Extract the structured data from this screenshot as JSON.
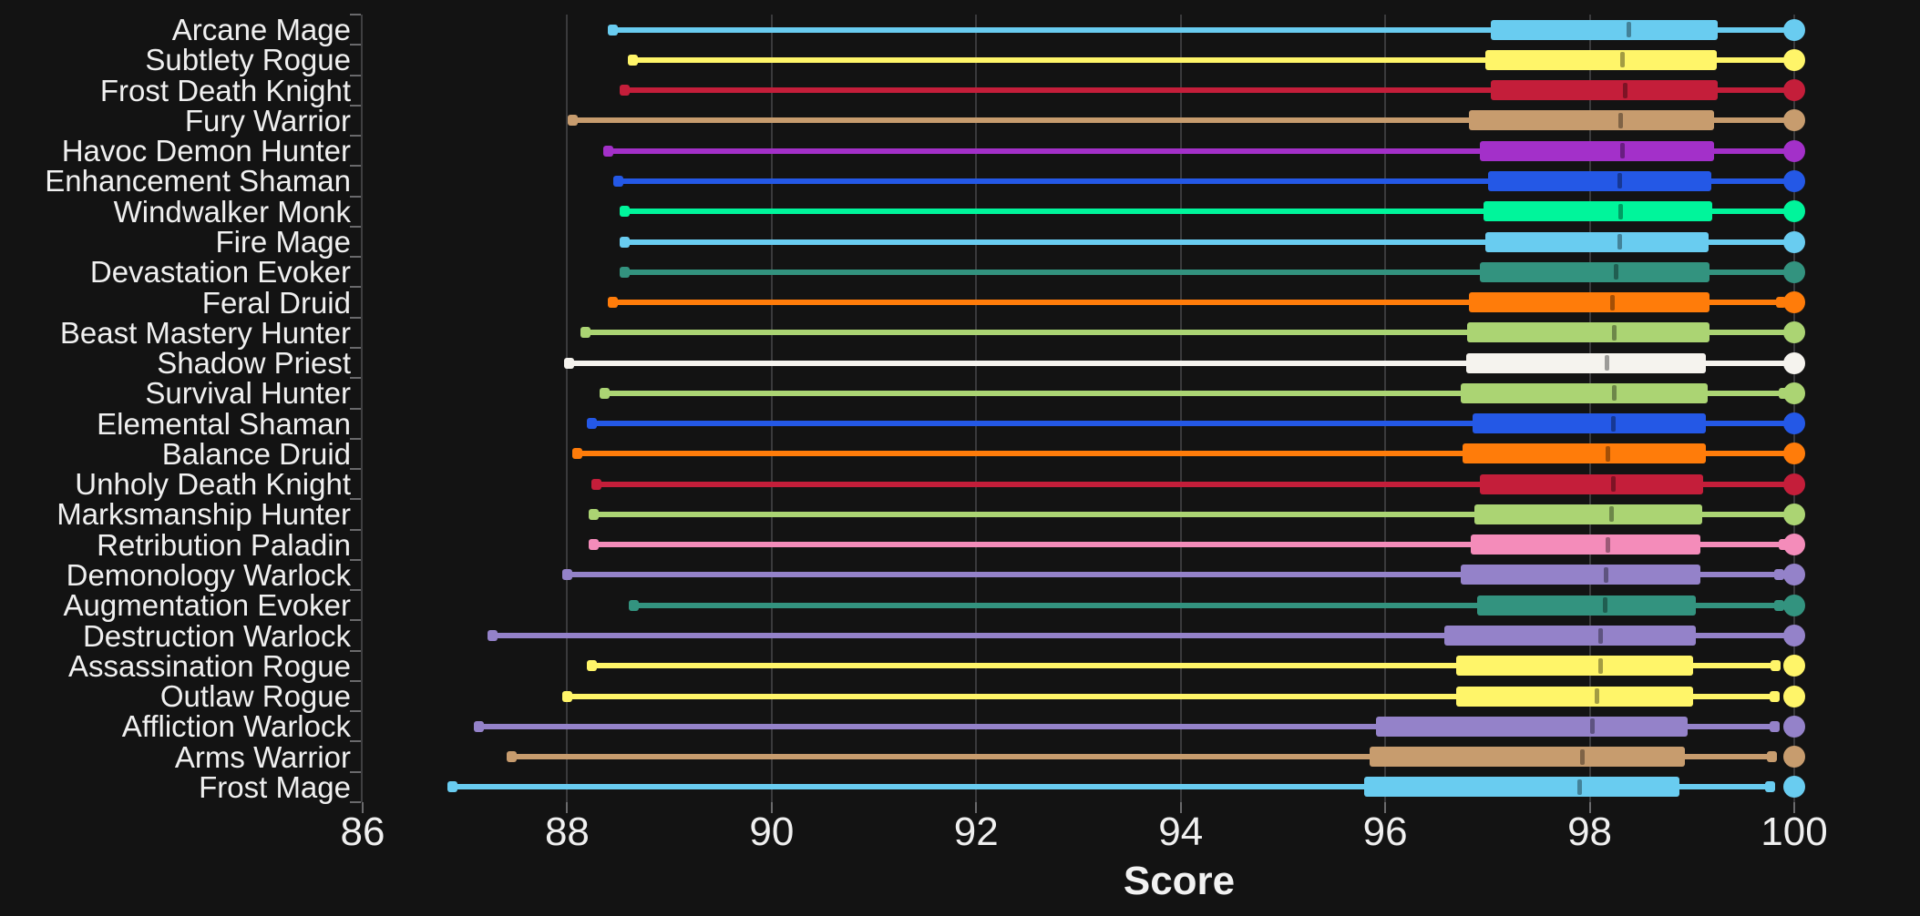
{
  "chart_data": {
    "type": "box",
    "orientation": "horizontal",
    "title": "",
    "xlabel": "Score",
    "ylabel": "",
    "xlim": [
      86,
      100.3
    ],
    "xticks": [
      86,
      88,
      90,
      92,
      94,
      96,
      98,
      100
    ],
    "grid": "vertical",
    "legend": "none",
    "marker_note": "each row: whisker_low cap, IQR box with darker median tick, whisker_high, max dot at 100",
    "rows": [
      {
        "label": "Arcane Mage",
        "color": "#69CCF0",
        "whisker_low": 88.45,
        "q1": 97.03,
        "median": 98.38,
        "q3": 99.25,
        "whisker_high": 100,
        "max": 100
      },
      {
        "label": "Subtlety Rogue",
        "color": "#FFF569",
        "whisker_low": 88.64,
        "q1": 96.98,
        "median": 98.32,
        "q3": 99.24,
        "whisker_high": 100,
        "max": 100
      },
      {
        "label": "Frost Death Knight",
        "color": "#C41E3A",
        "whisker_low": 88.56,
        "q1": 97.03,
        "median": 98.35,
        "q3": 99.25,
        "whisker_high": 100,
        "max": 100
      },
      {
        "label": "Fury Warrior",
        "color": "#C79C6E",
        "whisker_low": 88.05,
        "q1": 96.82,
        "median": 98.3,
        "q3": 99.22,
        "whisker_high": 100,
        "max": 100
      },
      {
        "label": "Havoc Demon Hunter",
        "color": "#A330C9",
        "whisker_low": 88.4,
        "q1": 96.93,
        "median": 98.32,
        "q3": 99.22,
        "whisker_high": 100,
        "max": 100
      },
      {
        "label": "Enhancement Shaman",
        "color": "#2458E6",
        "whisker_low": 88.5,
        "q1": 97.01,
        "median": 98.29,
        "q3": 99.19,
        "whisker_high": 100,
        "max": 100
      },
      {
        "label": "Windwalker Monk",
        "color": "#00F59B",
        "whisker_low": 88.56,
        "q1": 96.96,
        "median": 98.3,
        "q3": 99.2,
        "whisker_high": 100,
        "max": 100
      },
      {
        "label": "Fire Mage",
        "color": "#69CCF0",
        "whisker_low": 88.56,
        "q1": 96.98,
        "median": 98.29,
        "q3": 99.16,
        "whisker_high": 100,
        "max": 100
      },
      {
        "label": "Devastation Evoker",
        "color": "#33937F",
        "whisker_low": 88.56,
        "q1": 96.93,
        "median": 98.26,
        "q3": 99.17,
        "whisker_high": 100,
        "max": 100
      },
      {
        "label": "Feral Druid",
        "color": "#FF7C0A",
        "whisker_low": 88.45,
        "q1": 96.82,
        "median": 98.22,
        "q3": 99.17,
        "whisker_high": 99.87,
        "max": 100
      },
      {
        "label": "Beast Mastery Hunter",
        "color": "#ABD473",
        "whisker_low": 88.18,
        "q1": 96.8,
        "median": 98.24,
        "q3": 99.17,
        "whisker_high": 100,
        "max": 100
      },
      {
        "label": "Shadow Priest",
        "color": "#F5F3EE",
        "whisker_low": 88.02,
        "q1": 96.79,
        "median": 98.17,
        "q3": 99.14,
        "whisker_high": 100,
        "max": 100
      },
      {
        "label": "Survival Hunter",
        "color": "#ABD473",
        "whisker_low": 88.37,
        "q1": 96.74,
        "median": 98.24,
        "q3": 99.15,
        "whisker_high": 99.9,
        "max": 100
      },
      {
        "label": "Elemental Shaman",
        "color": "#2458E6",
        "whisker_low": 88.24,
        "q1": 96.85,
        "median": 98.23,
        "q3": 99.14,
        "whisker_high": 100,
        "max": 100
      },
      {
        "label": "Balance Druid",
        "color": "#FF7C0A",
        "whisker_low": 88.1,
        "q1": 96.76,
        "median": 98.18,
        "q3": 99.14,
        "whisker_high": 100,
        "max": 100
      },
      {
        "label": "Unholy Death Knight",
        "color": "#C41E3A",
        "whisker_low": 88.29,
        "q1": 96.93,
        "median": 98.23,
        "q3": 99.11,
        "whisker_high": 100,
        "max": 100
      },
      {
        "label": "Marksmanship Hunter",
        "color": "#ABD473",
        "whisker_low": 88.26,
        "q1": 96.87,
        "median": 98.21,
        "q3": 99.1,
        "whisker_high": 100,
        "max": 100
      },
      {
        "label": "Retribution Paladin",
        "color": "#F48CBA",
        "whisker_low": 88.26,
        "q1": 96.84,
        "median": 98.18,
        "q3": 99.08,
        "whisker_high": 99.9,
        "max": 100
      },
      {
        "label": "Demonology Warlock",
        "color": "#9482C9",
        "whisker_low": 88.0,
        "q1": 96.74,
        "median": 98.16,
        "q3": 99.08,
        "whisker_high": 99.85,
        "max": 100
      },
      {
        "label": "Augmentation Evoker",
        "color": "#33937F",
        "whisker_low": 88.65,
        "q1": 96.9,
        "median": 98.15,
        "q3": 99.04,
        "whisker_high": 99.85,
        "max": 100
      },
      {
        "label": "Destruction Warlock",
        "color": "#9482C9",
        "whisker_low": 87.27,
        "q1": 96.58,
        "median": 98.11,
        "q3": 99.04,
        "whisker_high": 100,
        "max": 100
      },
      {
        "label": "Assassination Rogue",
        "color": "#FFF569",
        "whisker_low": 88.24,
        "q1": 96.69,
        "median": 98.11,
        "q3": 99.01,
        "whisker_high": 99.82,
        "max": 100
      },
      {
        "label": "Outlaw Rogue",
        "color": "#FFF569",
        "whisker_low": 88.0,
        "q1": 96.69,
        "median": 98.07,
        "q3": 99.01,
        "whisker_high": 99.81,
        "max": 100
      },
      {
        "label": "Affliction Warlock",
        "color": "#9482C9",
        "whisker_low": 87.14,
        "q1": 95.91,
        "median": 98.03,
        "q3": 98.96,
        "whisker_high": 99.81,
        "max": 100
      },
      {
        "label": "Arms Warrior",
        "color": "#C79C6E",
        "whisker_low": 87.46,
        "q1": 95.85,
        "median": 97.93,
        "q3": 98.93,
        "whisker_high": 99.78,
        "max": 100
      },
      {
        "label": "Frost Mage",
        "color": "#69CCF0",
        "whisker_low": 86.88,
        "q1": 95.79,
        "median": 97.9,
        "q3": 98.88,
        "whisker_high": 99.76,
        "max": 100
      }
    ]
  },
  "colors": {
    "background": "#131313",
    "gridline": "#3a3a3c",
    "axis_spine": "#3f3f41",
    "tick_mark": "#6a6a6c",
    "text": "#f0f0f0",
    "median_overlay": "rgba(0,0,0,0.36)"
  }
}
